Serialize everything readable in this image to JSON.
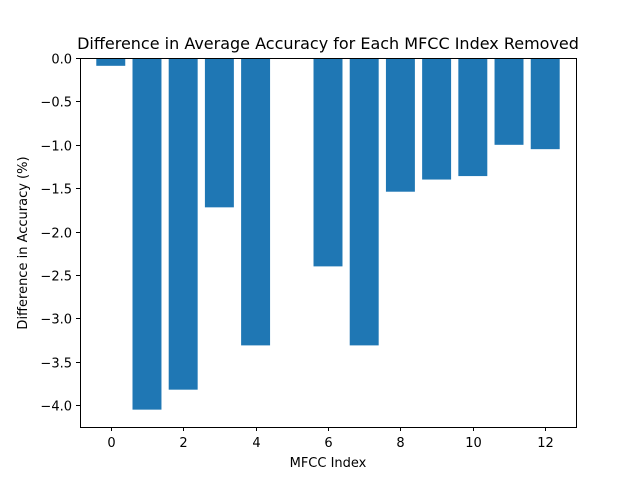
{
  "chart_data": {
    "type": "bar",
    "title": "Difference in Average Accuracy for Each MFCC Index Removed",
    "xlabel": "MFCC Index",
    "ylabel": "Difference in Accuracy (%)",
    "categories": [
      0,
      1,
      2,
      3,
      4,
      5,
      6,
      7,
      8,
      9,
      10,
      11,
      12
    ],
    "values": [
      -0.09,
      -4.05,
      -3.82,
      -1.72,
      -3.31,
      0.0,
      -2.4,
      -3.31,
      -1.54,
      -1.4,
      -1.36,
      -1.0,
      -1.05
    ],
    "xlim": [
      -0.85,
      12.85
    ],
    "ylim": [
      -4.25,
      0.0
    ],
    "xticks": [
      0,
      2,
      4,
      6,
      8,
      10,
      12
    ],
    "yticks": [
      0.0,
      -0.5,
      -1.0,
      -1.5,
      -2.0,
      -2.5,
      -3.0,
      -3.5,
      -4.0
    ],
    "ytick_labels": [
      "0.0",
      "−0.5",
      "−1.0",
      "−1.5",
      "−2.0",
      "−2.5",
      "−3.0",
      "−3.5",
      "−4.0"
    ],
    "bar_width": 0.8,
    "bar_color": "#1f77b4",
    "grid": false,
    "legend": "none"
  }
}
